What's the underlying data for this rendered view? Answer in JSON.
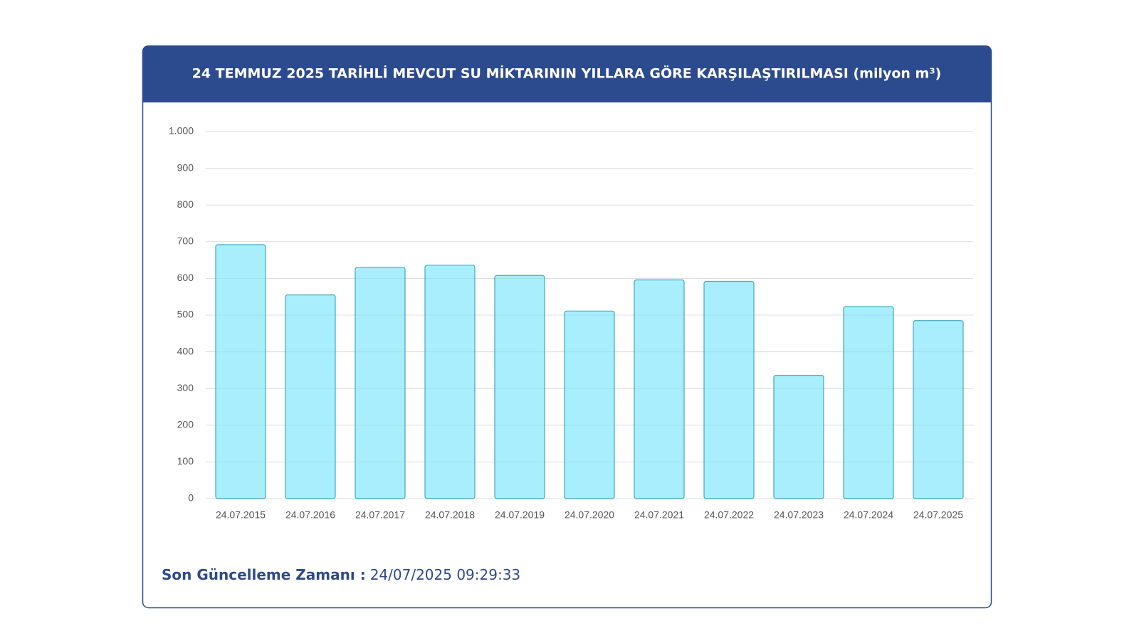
{
  "chart_data": {
    "type": "bar",
    "title": "24 TEMMUZ 2025 TARİHLİ MEVCUT SU MİKTARININ YILLARA GÖRE KARŞILAŞTIRILMASI (milyon m³)",
    "categories": [
      "24.07.2015",
      "24.07.2016",
      "24.07.2017",
      "24.07.2018",
      "24.07.2019",
      "24.07.2020",
      "24.07.2021",
      "24.07.2022",
      "24.07.2023",
      "24.07.2024",
      "24.07.2025"
    ],
    "values": [
      692,
      555,
      630,
      636,
      608,
      511,
      596,
      592,
      336,
      523,
      485
    ],
    "color": "#a9eefc",
    "ylim": [
      0,
      1000
    ],
    "yticks": [
      0,
      100,
      200,
      300,
      400,
      500,
      600,
      700,
      800,
      900,
      {
        "value": 1000,
        "label": "1.000"
      }
    ],
    "grid": true,
    "footer": {
      "label": "Son Güncelleme Zamanı :",
      "value": "24/07/2025 09:29:33"
    }
  }
}
